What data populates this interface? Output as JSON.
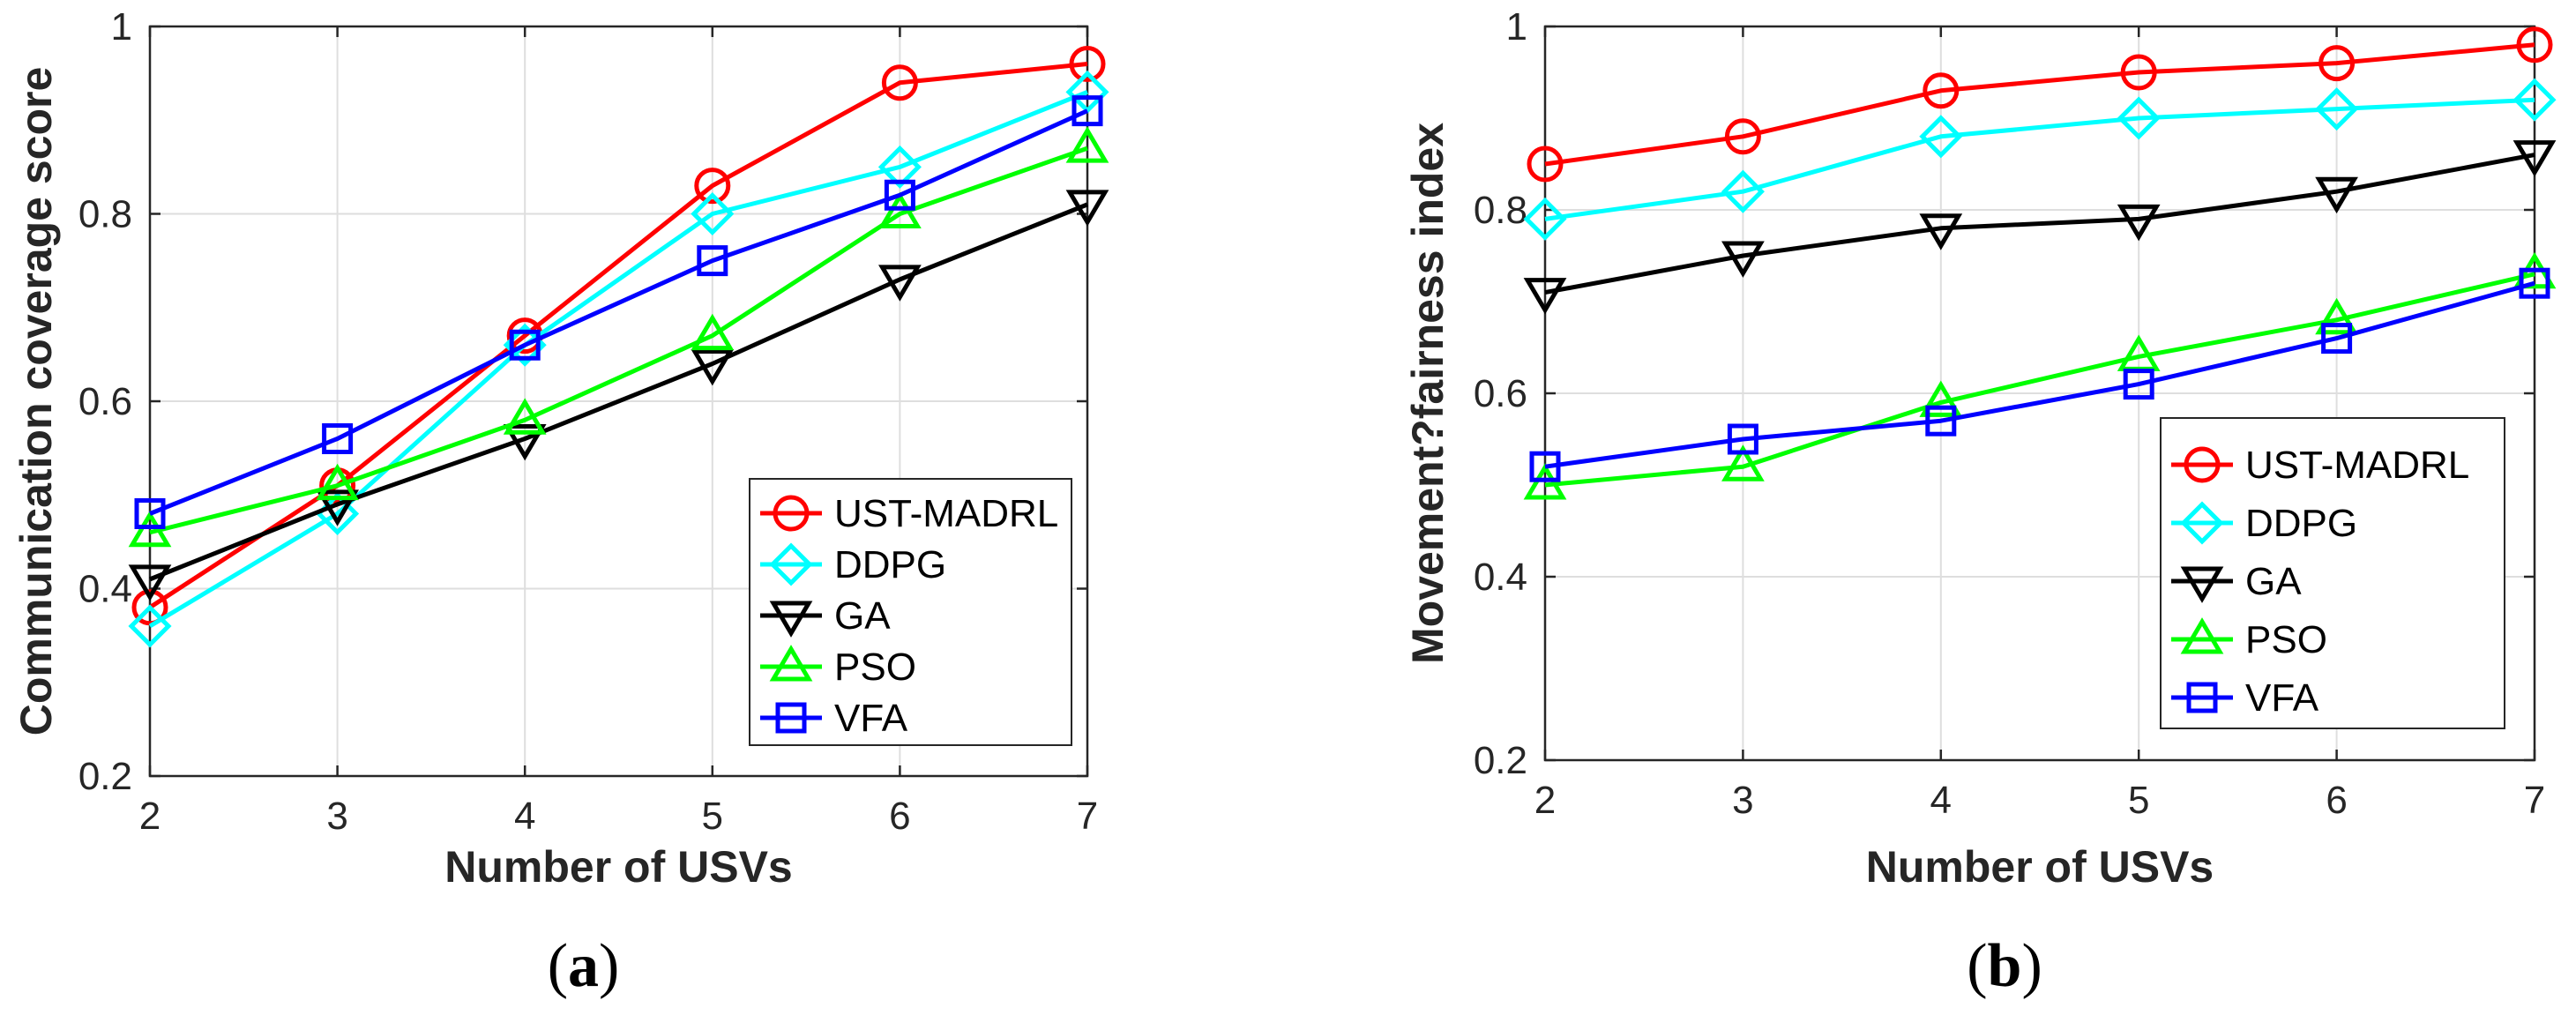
{
  "chart_data": [
    {
      "type": "line",
      "panel_label": "(a)",
      "panel_label_parts": {
        "open": "(",
        "letter": "a",
        "close": ")"
      },
      "title": "",
      "xlabel": "Number of USVs",
      "ylabel": "Communication coverage score",
      "x": [
        2,
        3,
        4,
        5,
        6,
        7
      ],
      "xticks": [
        "2",
        "3",
        "4",
        "5",
        "6",
        "7"
      ],
      "yticks": [
        "0.2",
        "0.4",
        "0.6",
        "0.8",
        "1"
      ],
      "xlim": [
        2,
        7
      ],
      "ylim": [
        0.2,
        1.0
      ],
      "grid": true,
      "legend_position": "bottom-right",
      "series": [
        {
          "name": "UST-MADRL",
          "color": "#ff0000",
          "marker": "circle",
          "values": [
            0.38,
            0.51,
            0.67,
            0.83,
            0.94,
            0.96
          ]
        },
        {
          "name": "DDPG",
          "color": "#00ffff",
          "marker": "diamond",
          "values": [
            0.36,
            0.48,
            0.66,
            0.8,
            0.85,
            0.93
          ]
        },
        {
          "name": "GA",
          "color": "#000000",
          "marker": "triangle-down",
          "values": [
            0.41,
            0.49,
            0.56,
            0.64,
            0.73,
            0.81
          ]
        },
        {
          "name": "PSO",
          "color": "#00ff00",
          "marker": "triangle-up",
          "values": [
            0.46,
            0.51,
            0.58,
            0.67,
            0.8,
            0.87
          ]
        },
        {
          "name": "VFA",
          "color": "#0000ff",
          "marker": "square",
          "values": [
            0.48,
            0.56,
            0.66,
            0.75,
            0.82,
            0.91
          ]
        }
      ]
    },
    {
      "type": "line",
      "panel_label": "(b)",
      "panel_label_parts": {
        "open": "(",
        "letter": "b",
        "close": ")"
      },
      "title": "",
      "xlabel": "Number of USVs",
      "ylabel": "Movement?fairness index",
      "x": [
        2,
        3,
        4,
        5,
        6,
        7
      ],
      "xticks": [
        "2",
        "3",
        "4",
        "5",
        "6",
        "7"
      ],
      "yticks": [
        "0.2",
        "0.4",
        "0.6",
        "0.8",
        "1"
      ],
      "xlim": [
        2,
        7
      ],
      "ylim": [
        0.2,
        1.0
      ],
      "grid": true,
      "legend_position": "bottom-right",
      "series": [
        {
          "name": "UST-MADRL",
          "color": "#ff0000",
          "marker": "circle",
          "values": [
            0.85,
            0.88,
            0.93,
            0.95,
            0.96,
            0.98
          ]
        },
        {
          "name": "DDPG",
          "color": "#00ffff",
          "marker": "diamond",
          "values": [
            0.79,
            0.82,
            0.88,
            0.9,
            0.91,
            0.92
          ]
        },
        {
          "name": "GA",
          "color": "#000000",
          "marker": "triangle-down",
          "values": [
            0.71,
            0.75,
            0.78,
            0.79,
            0.82,
            0.86
          ]
        },
        {
          "name": "PSO",
          "color": "#00ff00",
          "marker": "triangle-up",
          "values": [
            0.5,
            0.52,
            0.59,
            0.64,
            0.68,
            0.73
          ]
        },
        {
          "name": "VFA",
          "color": "#0000ff",
          "marker": "square",
          "values": [
            0.52,
            0.55,
            0.57,
            0.61,
            0.66,
            0.72
          ]
        }
      ]
    }
  ]
}
